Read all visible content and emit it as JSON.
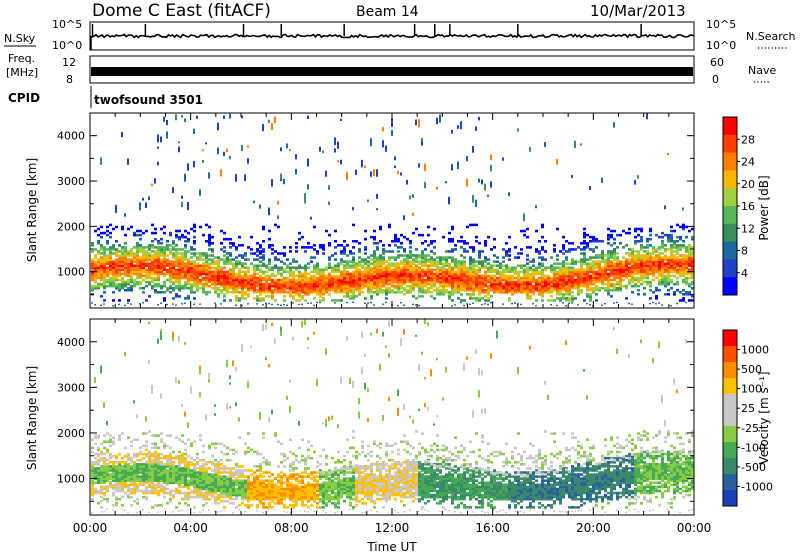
{
  "header": {
    "station": "Dome C East (fitACF)",
    "beam": "Beam 14",
    "date": "10/Mar/2013"
  },
  "strips": {
    "nsky_label": "N.Sky",
    "nsky_top": "10^5",
    "nsky_bottom": "10^0",
    "nsearch_label": "N.Search",
    "nsearch_top": "10^5",
    "nsearch_bottom": "10^0",
    "freq_label_1": "Freq.",
    "freq_label_2": "[MHz]",
    "freq_top": "12",
    "freq_bottom": "8",
    "nave_label": "Nave",
    "nave_top": "60",
    "nave_bottom": "0",
    "cpid_label": "CPID",
    "cpid_value": "twofsound 3501"
  },
  "chart_data": [
    {
      "type": "heatmap",
      "panel": "power",
      "ylabel": "Slant Range [km]",
      "xlabel": "",
      "ylim": [
        200,
        4500
      ],
      "yticks": [
        1000,
        2000,
        3000,
        4000
      ],
      "xlim": [
        "00:00",
        "24:00"
      ],
      "colorbar": {
        "label": "Power [dB]",
        "ticks": [
          "4",
          "8",
          "12",
          "16",
          "20",
          "24",
          "28"
        ],
        "colors": [
          "#0000ff",
          "#2040c8",
          "#1a6aa0",
          "#3a8f5c",
          "#58b858",
          "#a0d040",
          "#f8b800",
          "#ff8000",
          "#ff4000",
          "#ff0000"
        ]
      }
    },
    {
      "type": "heatmap",
      "panel": "velocity",
      "ylabel": "Slant Range [km]",
      "xlabel": "Time UT",
      "ylim": [
        200,
        4500
      ],
      "yticks": [
        1000,
        2000,
        3000,
        4000
      ],
      "xlim": [
        "00:00",
        "24:00"
      ],
      "xticks": [
        "00:00",
        "04:00",
        "08:00",
        "12:00",
        "16:00",
        "20:00",
        "00:00"
      ],
      "colorbar": {
        "label": "Velocity [m s⁻¹]",
        "ticks": [
          "1000",
          "500",
          "100",
          "25",
          "-25",
          "-100",
          "-500",
          "-1000"
        ],
        "colors": [
          "#1a3fb8",
          "#2a60a0",
          "#3a8a6a",
          "#44aa55",
          "#88cc44",
          "#c8c8c8",
          "#c8c8c8",
          "#ffc000",
          "#ff8c00",
          "#ff5000",
          "#ff0000"
        ]
      }
    }
  ]
}
